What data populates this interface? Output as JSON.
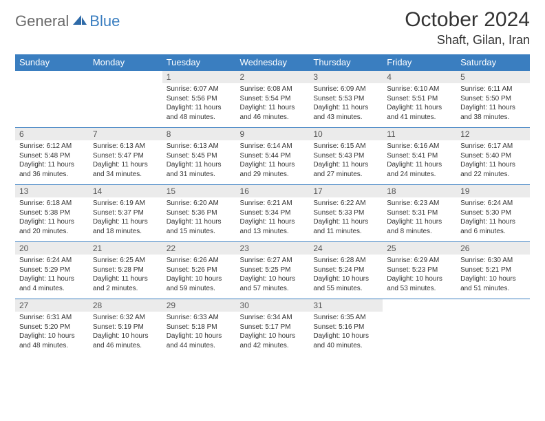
{
  "brand": {
    "part1": "General",
    "part2": "Blue"
  },
  "title": "October 2024",
  "location": "Shaft, Gilan, Iran",
  "colors": {
    "header_bg": "#3a7ec0",
    "header_text": "#ffffff",
    "daynum_bg": "#ebebeb",
    "border": "#3a7ec0",
    "text": "#333333",
    "logo_gray": "#6a6a6a",
    "logo_blue": "#3a7ec0"
  },
  "day_headers": [
    "Sunday",
    "Monday",
    "Tuesday",
    "Wednesday",
    "Thursday",
    "Friday",
    "Saturday"
  ],
  "weeks": [
    [
      null,
      null,
      {
        "n": "1",
        "sr": "6:07 AM",
        "ss": "5:56 PM",
        "dl": "11 hours and 48 minutes."
      },
      {
        "n": "2",
        "sr": "6:08 AM",
        "ss": "5:54 PM",
        "dl": "11 hours and 46 minutes."
      },
      {
        "n": "3",
        "sr": "6:09 AM",
        "ss": "5:53 PM",
        "dl": "11 hours and 43 minutes."
      },
      {
        "n": "4",
        "sr": "6:10 AM",
        "ss": "5:51 PM",
        "dl": "11 hours and 41 minutes."
      },
      {
        "n": "5",
        "sr": "6:11 AM",
        "ss": "5:50 PM",
        "dl": "11 hours and 38 minutes."
      }
    ],
    [
      {
        "n": "6",
        "sr": "6:12 AM",
        "ss": "5:48 PM",
        "dl": "11 hours and 36 minutes."
      },
      {
        "n": "7",
        "sr": "6:13 AM",
        "ss": "5:47 PM",
        "dl": "11 hours and 34 minutes."
      },
      {
        "n": "8",
        "sr": "6:13 AM",
        "ss": "5:45 PM",
        "dl": "11 hours and 31 minutes."
      },
      {
        "n": "9",
        "sr": "6:14 AM",
        "ss": "5:44 PM",
        "dl": "11 hours and 29 minutes."
      },
      {
        "n": "10",
        "sr": "6:15 AM",
        "ss": "5:43 PM",
        "dl": "11 hours and 27 minutes."
      },
      {
        "n": "11",
        "sr": "6:16 AM",
        "ss": "5:41 PM",
        "dl": "11 hours and 24 minutes."
      },
      {
        "n": "12",
        "sr": "6:17 AM",
        "ss": "5:40 PM",
        "dl": "11 hours and 22 minutes."
      }
    ],
    [
      {
        "n": "13",
        "sr": "6:18 AM",
        "ss": "5:38 PM",
        "dl": "11 hours and 20 minutes."
      },
      {
        "n": "14",
        "sr": "6:19 AM",
        "ss": "5:37 PM",
        "dl": "11 hours and 18 minutes."
      },
      {
        "n": "15",
        "sr": "6:20 AM",
        "ss": "5:36 PM",
        "dl": "11 hours and 15 minutes."
      },
      {
        "n": "16",
        "sr": "6:21 AM",
        "ss": "5:34 PM",
        "dl": "11 hours and 13 minutes."
      },
      {
        "n": "17",
        "sr": "6:22 AM",
        "ss": "5:33 PM",
        "dl": "11 hours and 11 minutes."
      },
      {
        "n": "18",
        "sr": "6:23 AM",
        "ss": "5:31 PM",
        "dl": "11 hours and 8 minutes."
      },
      {
        "n": "19",
        "sr": "6:24 AM",
        "ss": "5:30 PM",
        "dl": "11 hours and 6 minutes."
      }
    ],
    [
      {
        "n": "20",
        "sr": "6:24 AM",
        "ss": "5:29 PM",
        "dl": "11 hours and 4 minutes."
      },
      {
        "n": "21",
        "sr": "6:25 AM",
        "ss": "5:28 PM",
        "dl": "11 hours and 2 minutes."
      },
      {
        "n": "22",
        "sr": "6:26 AM",
        "ss": "5:26 PM",
        "dl": "10 hours and 59 minutes."
      },
      {
        "n": "23",
        "sr": "6:27 AM",
        "ss": "5:25 PM",
        "dl": "10 hours and 57 minutes."
      },
      {
        "n": "24",
        "sr": "6:28 AM",
        "ss": "5:24 PM",
        "dl": "10 hours and 55 minutes."
      },
      {
        "n": "25",
        "sr": "6:29 AM",
        "ss": "5:23 PM",
        "dl": "10 hours and 53 minutes."
      },
      {
        "n": "26",
        "sr": "6:30 AM",
        "ss": "5:21 PM",
        "dl": "10 hours and 51 minutes."
      }
    ],
    [
      {
        "n": "27",
        "sr": "6:31 AM",
        "ss": "5:20 PM",
        "dl": "10 hours and 48 minutes."
      },
      {
        "n": "28",
        "sr": "6:32 AM",
        "ss": "5:19 PM",
        "dl": "10 hours and 46 minutes."
      },
      {
        "n": "29",
        "sr": "6:33 AM",
        "ss": "5:18 PM",
        "dl": "10 hours and 44 minutes."
      },
      {
        "n": "30",
        "sr": "6:34 AM",
        "ss": "5:17 PM",
        "dl": "10 hours and 42 minutes."
      },
      {
        "n": "31",
        "sr": "6:35 AM",
        "ss": "5:16 PM",
        "dl": "10 hours and 40 minutes."
      },
      null,
      null
    ]
  ],
  "labels": {
    "sunrise": "Sunrise:",
    "sunset": "Sunset:",
    "daylight": "Daylight:"
  }
}
